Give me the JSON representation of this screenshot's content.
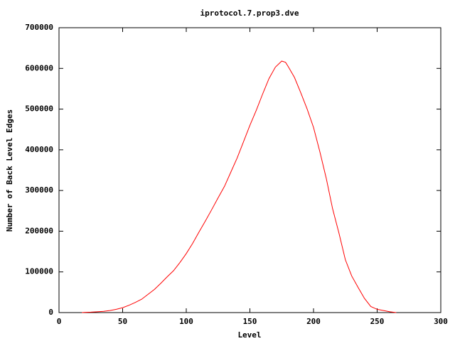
{
  "chart_data": {
    "type": "line",
    "title": "iprotocol.7.prop3.dve",
    "x_label": "Level",
    "y_label": "Number of Back Level Edges",
    "x": [
      18,
      20,
      25,
      30,
      35,
      40,
      45,
      50,
      55,
      60,
      65,
      70,
      75,
      80,
      85,
      90,
      95,
      100,
      105,
      110,
      115,
      120,
      125,
      130,
      135,
      140,
      145,
      150,
      155,
      160,
      165,
      170,
      175,
      178,
      180,
      185,
      190,
      195,
      200,
      205,
      210,
      215,
      220,
      225,
      230,
      235,
      240,
      245,
      250,
      255,
      260,
      265
    ],
    "series": [
      {
        "color": "#ff0000",
        "values": [
          0,
          500,
          1000,
          2000,
          3000,
          5000,
          8000,
          12000,
          18000,
          25000,
          33000,
          45000,
          57000,
          72000,
          88000,
          103000,
          123000,
          145000,
          170000,
          198000,
          225000,
          253000,
          282000,
          310000,
          345000,
          380000,
          420000,
          460000,
          497000,
          537000,
          575000,
          603000,
          618000,
          615000,
          605000,
          578000,
          540000,
          500000,
          455000,
          395000,
          330000,
          255000,
          195000,
          130000,
          90000,
          62000,
          35000,
          15000,
          8000,
          5000,
          2000,
          0
        ]
      }
    ],
    "xlim": [
      0,
      300
    ],
    "xticks": [
      0,
      50,
      100,
      150,
      200,
      250,
      300
    ],
    "ylim": [
      0,
      700000
    ],
    "yticks": [
      0,
      100000,
      200000,
      300000,
      400000,
      500000,
      600000,
      700000
    ]
  }
}
